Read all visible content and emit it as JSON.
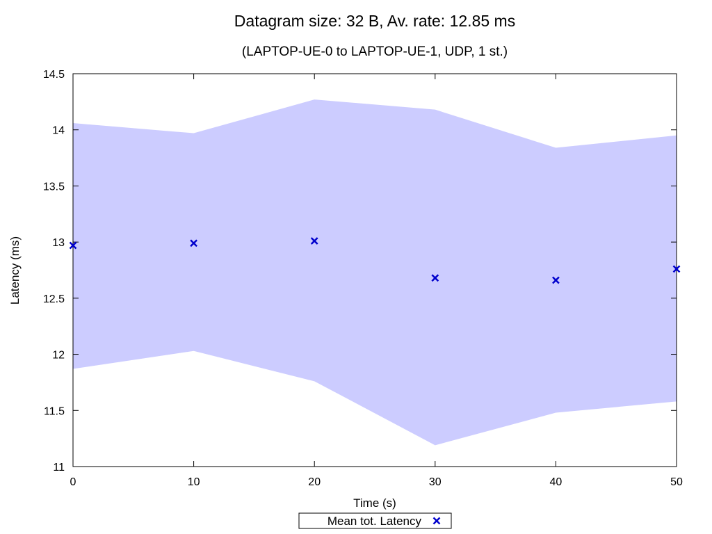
{
  "chart_data": {
    "type": "scatter",
    "title": "Datagram size: 32 B, Av. rate: 12.85 ms",
    "subtitle": "(LAPTOP-UE-0 to LAPTOP-UE-1, UDP, 1 st.)",
    "xlabel": "Time (s)",
    "ylabel": "Latency (ms)",
    "xlim": [
      0,
      50
    ],
    "ylim": [
      11,
      14.5
    ],
    "x_ticks": [
      0,
      10,
      20,
      30,
      40,
      50
    ],
    "y_ticks": [
      11,
      11.5,
      12,
      12.5,
      13,
      13.5,
      14,
      14.5
    ],
    "x_tick_labels": [
      "0",
      "10",
      "20",
      "30",
      "40",
      "50"
    ],
    "y_tick_labels": [
      "11",
      "11.5",
      "12",
      "12.5",
      "13",
      "13.5",
      "14",
      "14.5"
    ],
    "grid": false,
    "legend_position": "bottom-center",
    "band": {
      "x": [
        0,
        10,
        20,
        30,
        40,
        50
      ],
      "lower": [
        11.87,
        12.03,
        11.76,
        11.19,
        11.48,
        11.58
      ],
      "upper": [
        14.06,
        13.97,
        14.27,
        14.18,
        13.84,
        13.95
      ],
      "color": "#ccccff"
    },
    "series": [
      {
        "name": "Mean tot. Latency",
        "x": [
          0,
          10,
          20,
          30,
          40,
          50
        ],
        "y": [
          12.97,
          12.99,
          13.01,
          12.68,
          12.66,
          12.76
        ],
        "color": "#0000cc",
        "marker": "x"
      }
    ]
  }
}
